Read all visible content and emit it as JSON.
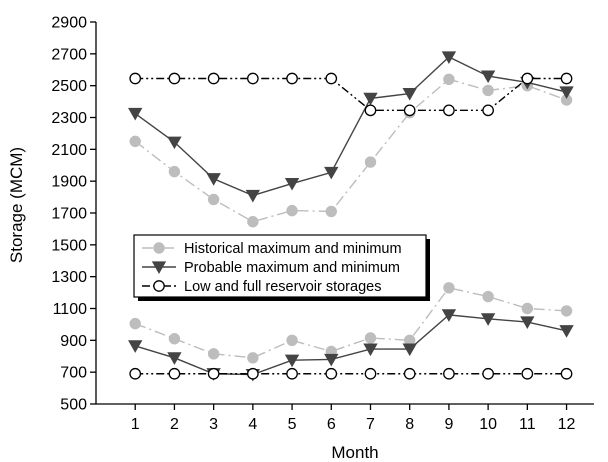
{
  "chart_data": {
    "type": "line",
    "xlabel": "Month",
    "ylabel": "Storage (MCM)",
    "x": [
      1,
      2,
      3,
      4,
      5,
      6,
      7,
      8,
      9,
      10,
      11,
      12
    ],
    "xlim": [
      0,
      12.7
    ],
    "ylim": [
      500,
      2900
    ],
    "yticks": [
      500,
      700,
      900,
      1100,
      1300,
      1500,
      1700,
      1900,
      2100,
      2300,
      2500,
      2700,
      2900
    ],
    "legend_position": "center-left",
    "series": [
      {
        "name": "Historical maximum and minimum",
        "color": "#bdbdbd",
        "marker": "filled-circle",
        "linestyle": "dash-dot",
        "lines": [
          [
            2150,
            1960,
            1785,
            1645,
            1715,
            1710,
            2020,
            2330,
            2540,
            2470,
            2500,
            2410
          ],
          [
            1005,
            910,
            815,
            790,
            900,
            830,
            915,
            900,
            1230,
            1175,
            1100,
            1085
          ]
        ]
      },
      {
        "name": "Probable maximum and minimum",
        "color": "#444444",
        "marker": "filled-triangle-down",
        "linestyle": "solid",
        "lines": [
          [
            2325,
            2145,
            1915,
            1810,
            1885,
            1955,
            2420,
            2450,
            2680,
            2560,
            2520,
            2460
          ],
          [
            865,
            790,
            690,
            685,
            775,
            780,
            845,
            845,
            1060,
            1035,
            1015,
            960
          ]
        ]
      },
      {
        "name": "Low and full reservoir storages",
        "color": "#000000",
        "marker": "open-circle",
        "linestyle": "dash-dot-dot",
        "lines": [
          [
            2545,
            2545,
            2545,
            2545,
            2545,
            2545,
            2345,
            2345,
            2345,
            2345,
            2545,
            2545
          ],
          [
            690,
            690,
            690,
            690,
            690,
            690,
            690,
            690,
            690,
            690,
            690,
            690
          ]
        ]
      }
    ]
  }
}
